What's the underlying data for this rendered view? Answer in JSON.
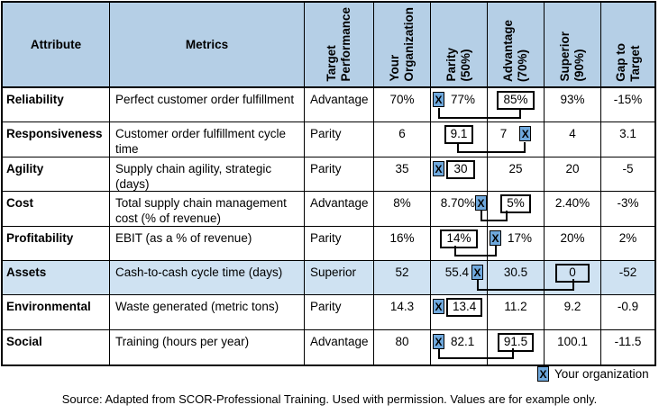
{
  "colors": {
    "header_bg": "#B5CFE6",
    "highlight_row_bg": "#CFE2F2",
    "marker_fill": "#6FA8DC",
    "border": "#000000"
  },
  "table": {
    "headers": {
      "attribute": "Attribute",
      "metrics": "Metrics",
      "target_performance": "Target\nPerformance",
      "your_organization": "Your\nOrganization",
      "parity": "Parity\n(50%)",
      "advantage": "Advantage\n(70%)",
      "superior": "Superior\n(90%)",
      "gap_to_target": "Gap to\nTarget"
    },
    "rows": [
      {
        "attribute": "Reliability",
        "metric": "Perfect customer order fulfillment",
        "target": "Advantage",
        "your_org": "70%",
        "parity": "77%",
        "advantage": "85%",
        "superior": "93%",
        "gap": "-15%"
      },
      {
        "attribute": "Responsiveness",
        "metric": "Customer order fulfillment cycle time",
        "target": "Parity",
        "your_org": "6",
        "parity": "9.1",
        "advantage": "7",
        "superior": "4",
        "gap": "3.1"
      },
      {
        "attribute": "Agility",
        "metric": "Supply chain agility, strategic (days)",
        "target": "Parity",
        "your_org": "35",
        "parity": "30",
        "advantage": "25",
        "superior": "20",
        "gap": "-5"
      },
      {
        "attribute": "Cost",
        "metric": "Total supply chain management cost (% of revenue)",
        "target": "Advantage",
        "your_org": "8%",
        "parity": "8.70%",
        "advantage": "5%",
        "superior": "2.40%",
        "gap": "-3%"
      },
      {
        "attribute": "Profitability",
        "metric": "EBIT (as a % of revenue)",
        "target": "Parity",
        "your_org": "16%",
        "parity": "14%",
        "advantage": "17%",
        "superior": "20%",
        "gap": "2%"
      },
      {
        "attribute": "Assets",
        "metric": "Cash-to-cash cycle time (days)",
        "target": "Superior",
        "your_org": "52",
        "parity": "55.4",
        "advantage": "30.5",
        "superior": "0",
        "gap": "-52"
      },
      {
        "attribute": "Environmental",
        "metric": "Waste generated (metric tons)",
        "target": "Parity",
        "your_org": "14.3",
        "parity": "13.4",
        "advantage": "11.2",
        "superior": "9.2",
        "gap": "-0.9"
      },
      {
        "attribute": "Social",
        "metric": "Training (hours per year)",
        "target": "Advantage",
        "your_org": "80",
        "parity": "82.1",
        "advantage": "91.5",
        "superior": "100.1",
        "gap": "-11.5"
      }
    ]
  },
  "legend": {
    "marker": "X",
    "label": "Your organization"
  },
  "footer": "Source: Adapted from SCOR-Professional Training. Used with permission. Values are for example only."
}
